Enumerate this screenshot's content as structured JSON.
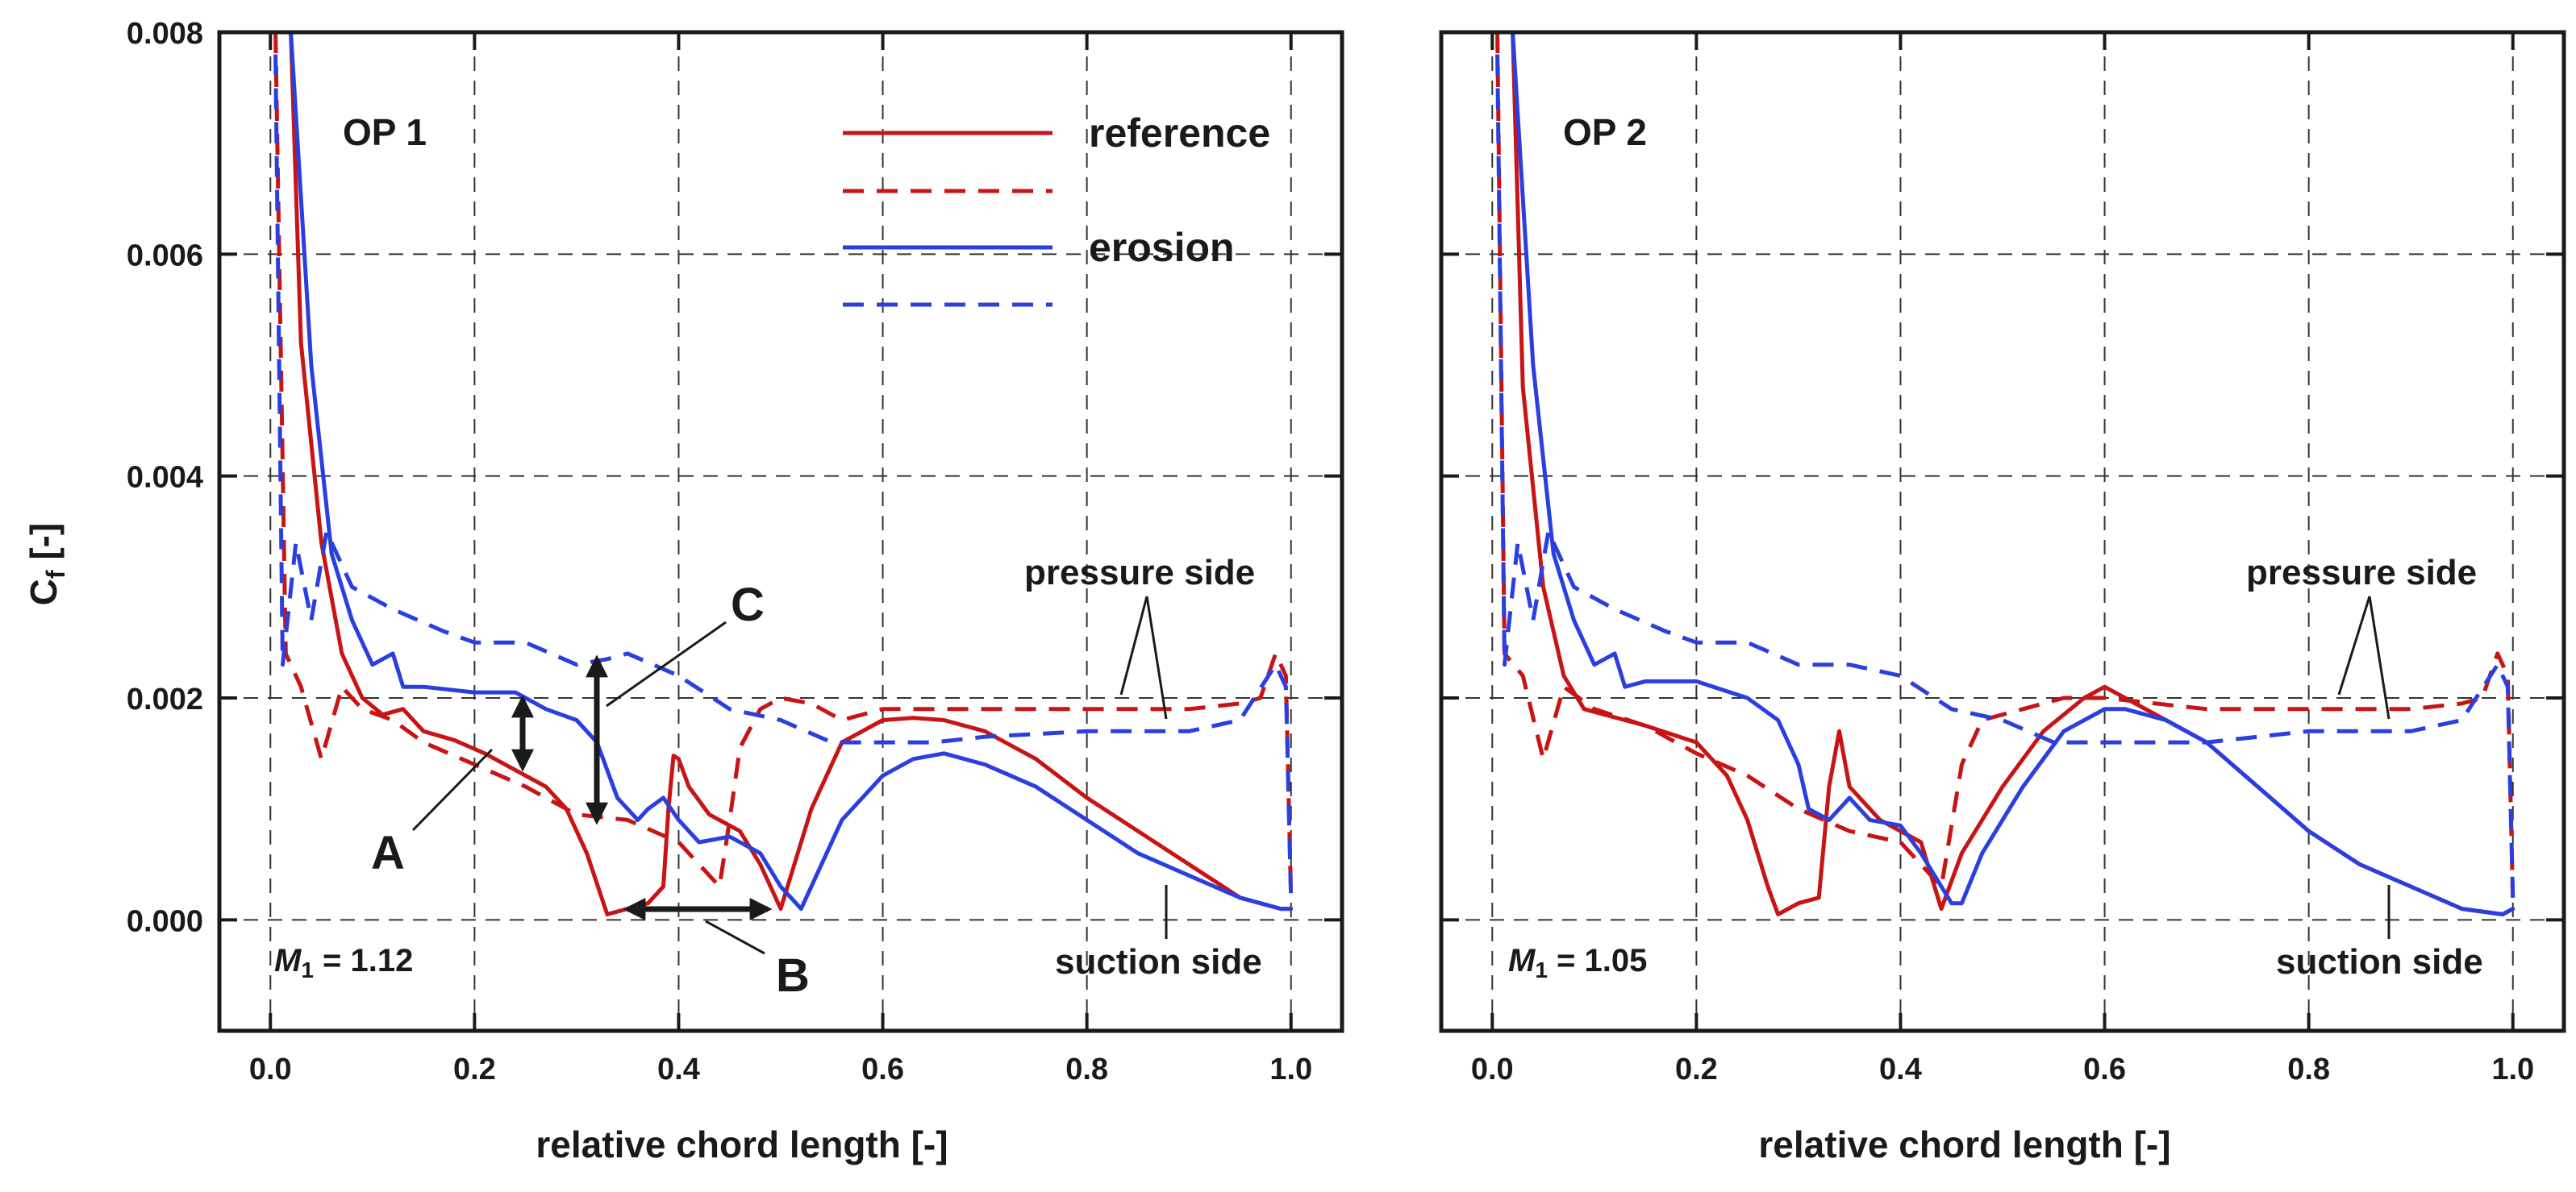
{
  "colors": {
    "reference": "#c81414",
    "erosion": "#2a3fe0",
    "axes": "#1a1a1a",
    "grid": "#333333"
  },
  "legend": {
    "entries": [
      {
        "label": "reference",
        "series": "reference",
        "dash": "solid"
      },
      {
        "label": "",
        "series": "reference",
        "dash": "dashed"
      },
      {
        "label": "erosion",
        "series": "erosion",
        "dash": "solid"
      },
      {
        "label": "",
        "series": "erosion",
        "dash": "dashed"
      }
    ]
  },
  "chart_data": [
    {
      "type": "line",
      "panel": "OP 1",
      "title": "OP 1",
      "xlabel": "relative chord length [-]",
      "ylabel": "C_f [-]",
      "ylabel_main": "C",
      "ylabel_sub": "f",
      "ylabel_rest": " [-]",
      "xlim": [
        -0.05,
        1.05
      ],
      "ylim": [
        -0.001,
        0.008
      ],
      "xticks": [
        0.0,
        0.2,
        0.4,
        0.6,
        0.8,
        1.0
      ],
      "xtick_labels": [
        "0.0",
        "0.2",
        "0.4",
        "0.6",
        "0.8",
        "1.0"
      ],
      "yticks": [
        0.0,
        0.002,
        0.004,
        0.006,
        0.008
      ],
      "ytick_labels": [
        "0.000",
        "0.002",
        "0.004",
        "0.006",
        "0.008"
      ],
      "grid": true,
      "annotations": {
        "mach_symbol": "M",
        "mach_sub": "1",
        "mach_value": " = 1.12",
        "pressure_side": "pressure side",
        "suction_side": "suction side",
        "A": "A",
        "B": "B",
        "C": "C"
      },
      "series": [
        {
          "name": "reference suction side",
          "color_key": "reference",
          "dash": "solid",
          "x": [
            0.01,
            0.02,
            0.03,
            0.05,
            0.07,
            0.09,
            0.11,
            0.13,
            0.15,
            0.18,
            0.21,
            0.24,
            0.27,
            0.29,
            0.31,
            0.33,
            0.35,
            0.37,
            0.385,
            0.39,
            0.395,
            0.4,
            0.41,
            0.43,
            0.46,
            0.48,
            0.5,
            0.53,
            0.56,
            0.6,
            0.63,
            0.66,
            0.7,
            0.75,
            0.8,
            0.85,
            0.9,
            0.95,
            0.99,
            1.0
          ],
          "y": [
            0.008,
            0.008,
            0.0052,
            0.0034,
            0.0024,
            0.002,
            0.00185,
            0.0019,
            0.0017,
            0.00162,
            0.0015,
            0.00135,
            0.0012,
            0.001,
            0.0006,
            5e-05,
            0.0001,
            0.00015,
            0.0003,
            0.001,
            0.00148,
            0.00145,
            0.0012,
            0.00095,
            0.0008,
            0.0005,
            0.0001,
            0.001,
            0.0016,
            0.0018,
            0.00182,
            0.0018,
            0.0017,
            0.00145,
            0.0011,
            0.0008,
            0.0005,
            0.0002,
            0.0001,
            0.0001
          ]
        },
        {
          "name": "reference pressure side",
          "color_key": "reference",
          "dash": "dashed",
          "x": [
            0.005,
            0.015,
            0.03,
            0.05,
            0.07,
            0.09,
            0.12,
            0.15,
            0.2,
            0.25,
            0.3,
            0.35,
            0.4,
            0.44,
            0.45,
            0.46,
            0.48,
            0.5,
            0.53,
            0.56,
            0.6,
            0.65,
            0.7,
            0.8,
            0.85,
            0.9,
            0.95,
            0.97,
            0.985,
            0.995,
            1.0
          ],
          "y": [
            0.008,
            0.0024,
            0.0021,
            0.00145,
            0.0021,
            0.0019,
            0.0018,
            0.0016,
            0.0014,
            0.0012,
            0.00095,
            0.0009,
            0.0007,
            0.0003,
            0.0009,
            0.00155,
            0.0019,
            0.002,
            0.00195,
            0.0018,
            0.0019,
            0.0019,
            0.0019,
            0.0019,
            0.0019,
            0.0019,
            0.00195,
            0.002,
            0.0024,
            0.0022,
            0.0002
          ]
        },
        {
          "name": "erosion suction side",
          "color_key": "erosion",
          "dash": "solid",
          "x": [
            0.01,
            0.02,
            0.04,
            0.06,
            0.08,
            0.1,
            0.12,
            0.13,
            0.15,
            0.2,
            0.24,
            0.27,
            0.3,
            0.32,
            0.34,
            0.36,
            0.37,
            0.385,
            0.4,
            0.42,
            0.45,
            0.48,
            0.5,
            0.52,
            0.56,
            0.6,
            0.63,
            0.66,
            0.7,
            0.75,
            0.8,
            0.85,
            0.9,
            0.95,
            0.99,
            1.0
          ],
          "y": [
            0.008,
            0.008,
            0.005,
            0.0033,
            0.0027,
            0.0023,
            0.0024,
            0.0021,
            0.0021,
            0.00205,
            0.00205,
            0.0019,
            0.0018,
            0.0016,
            0.0011,
            0.0009,
            0.001,
            0.0011,
            0.0009,
            0.0007,
            0.00075,
            0.0006,
            0.0003,
            0.0001,
            0.0009,
            0.0013,
            0.00145,
            0.0015,
            0.0014,
            0.0012,
            0.0009,
            0.0006,
            0.0004,
            0.0002,
            0.0001,
            0.0001
          ]
        },
        {
          "name": "erosion pressure side",
          "color_key": "erosion",
          "dash": "dashed",
          "x": [
            0.005,
            0.012,
            0.025,
            0.04,
            0.055,
            0.08,
            0.12,
            0.17,
            0.2,
            0.25,
            0.3,
            0.33,
            0.35,
            0.4,
            0.45,
            0.5,
            0.55,
            0.6,
            0.65,
            0.7,
            0.8,
            0.85,
            0.9,
            0.95,
            0.985,
            0.995,
            1.0
          ],
          "y": [
            0.0078,
            0.0023,
            0.0034,
            0.0027,
            0.0035,
            0.003,
            0.0028,
            0.0026,
            0.0025,
            0.0025,
            0.0023,
            0.00235,
            0.0024,
            0.0022,
            0.0019,
            0.0018,
            0.0016,
            0.0016,
            0.0016,
            0.00165,
            0.0017,
            0.0017,
            0.0017,
            0.0018,
            0.0023,
            0.0021,
            0.0002
          ]
        }
      ]
    },
    {
      "type": "line",
      "panel": "OP 2",
      "title": "OP 2",
      "xlabel": "relative chord length [-]",
      "ylabel": "",
      "xlim": [
        -0.05,
        1.05
      ],
      "ylim": [
        -0.001,
        0.008
      ],
      "xticks": [
        0.0,
        0.2,
        0.4,
        0.6,
        0.8,
        1.0
      ],
      "xtick_labels": [
        "0.0",
        "0.2",
        "0.4",
        "0.6",
        "0.8",
        "1.0"
      ],
      "yticks": [
        0.0,
        0.002,
        0.004,
        0.006,
        0.008
      ],
      "ytick_labels": [],
      "grid": true,
      "annotations": {
        "mach_symbol": "M",
        "mach_sub": "1",
        "mach_value": " = 1.05",
        "pressure_side": "pressure side",
        "suction_side": "suction side"
      },
      "series": [
        {
          "name": "reference suction side",
          "color_key": "reference",
          "dash": "solid",
          "x": [
            0.01,
            0.02,
            0.03,
            0.05,
            0.07,
            0.09,
            0.11,
            0.13,
            0.15,
            0.2,
            0.23,
            0.25,
            0.27,
            0.28,
            0.3,
            0.32,
            0.33,
            0.34,
            0.35,
            0.38,
            0.42,
            0.44,
            0.46,
            0.5,
            0.54,
            0.58,
            0.6,
            0.62,
            0.66,
            0.7,
            0.75,
            0.8,
            0.85,
            0.9,
            0.95,
            0.99,
            1.0
          ],
          "y": [
            0.008,
            0.008,
            0.0048,
            0.003,
            0.0022,
            0.0019,
            0.00185,
            0.0018,
            0.00175,
            0.0016,
            0.0013,
            0.0009,
            0.0003,
            5e-05,
            0.00015,
            0.0002,
            0.0012,
            0.0017,
            0.0012,
            0.0009,
            0.0007,
            0.0001,
            0.0006,
            0.0012,
            0.0017,
            0.002,
            0.0021,
            0.002,
            0.0018,
            0.0016,
            0.0012,
            0.0008,
            0.0005,
            0.0003,
            0.0001,
            5e-05,
            0.0001
          ]
        },
        {
          "name": "reference pressure side",
          "color_key": "reference",
          "dash": "dashed",
          "x": [
            0.005,
            0.012,
            0.03,
            0.05,
            0.07,
            0.1,
            0.15,
            0.2,
            0.25,
            0.3,
            0.35,
            0.4,
            0.43,
            0.44,
            0.46,
            0.48,
            0.52,
            0.56,
            0.6,
            0.7,
            0.8,
            0.85,
            0.9,
            0.95,
            0.97,
            0.985,
            0.995,
            1.0
          ],
          "y": [
            0.008,
            0.0024,
            0.0022,
            0.00145,
            0.0021,
            0.0019,
            0.00175,
            0.0015,
            0.0013,
            0.001,
            0.0008,
            0.0007,
            0.0004,
            0.0003,
            0.0014,
            0.0018,
            0.0019,
            0.002,
            0.002,
            0.0019,
            0.0019,
            0.0019,
            0.0019,
            0.00195,
            0.002,
            0.0024,
            0.0022,
            0.0002
          ]
        },
        {
          "name": "erosion suction side",
          "color_key": "erosion",
          "dash": "solid",
          "x": [
            0.01,
            0.02,
            0.04,
            0.06,
            0.08,
            0.1,
            0.12,
            0.13,
            0.15,
            0.2,
            0.25,
            0.28,
            0.3,
            0.31,
            0.33,
            0.35,
            0.37,
            0.4,
            0.42,
            0.44,
            0.45,
            0.46,
            0.48,
            0.52,
            0.56,
            0.6,
            0.62,
            0.66,
            0.7,
            0.75,
            0.8,
            0.85,
            0.9,
            0.95,
            0.99,
            1.0
          ],
          "y": [
            0.008,
            0.008,
            0.005,
            0.0033,
            0.0027,
            0.0023,
            0.0024,
            0.0021,
            0.00215,
            0.00215,
            0.002,
            0.0018,
            0.0014,
            0.001,
            0.0009,
            0.0011,
            0.0009,
            0.00085,
            0.0006,
            0.0003,
            0.00015,
            0.00015,
            0.0006,
            0.0012,
            0.0017,
            0.0019,
            0.0019,
            0.0018,
            0.0016,
            0.0012,
            0.0008,
            0.0005,
            0.0003,
            0.0001,
            5e-05,
            0.0001
          ]
        },
        {
          "name": "erosion pressure side",
          "color_key": "erosion",
          "dash": "dashed",
          "x": [
            0.005,
            0.012,
            0.025,
            0.04,
            0.055,
            0.08,
            0.12,
            0.17,
            0.2,
            0.25,
            0.3,
            0.35,
            0.4,
            0.45,
            0.5,
            0.55,
            0.6,
            0.65,
            0.7,
            0.8,
            0.85,
            0.9,
            0.95,
            0.985,
            0.995,
            1.0
          ],
          "y": [
            0.0078,
            0.0023,
            0.0034,
            0.0027,
            0.0035,
            0.003,
            0.0028,
            0.0026,
            0.0025,
            0.0025,
            0.0023,
            0.0023,
            0.0022,
            0.0019,
            0.0018,
            0.0016,
            0.0016,
            0.0016,
            0.0016,
            0.0017,
            0.0017,
            0.0017,
            0.0018,
            0.0023,
            0.0021,
            0.0002
          ]
        }
      ]
    }
  ]
}
